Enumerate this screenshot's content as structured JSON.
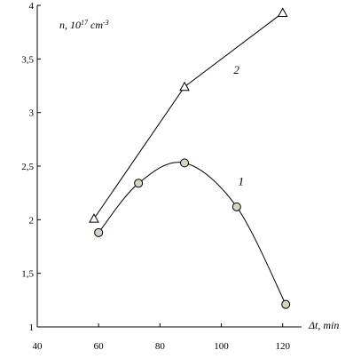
{
  "chart_data": {
    "type": "line",
    "ylabel_prefix": "n, 10",
    "ylabel_exp": "17",
    "ylabel_unit": " cm",
    "ylabel_unit_exp": "-3",
    "xlabel": "Δt, min",
    "xlim": [
      40,
      125
    ],
    "ylim": [
      1,
      4
    ],
    "xticks": [
      40,
      60,
      80,
      100,
      120
    ],
    "yticks": [
      1,
      1.5,
      2,
      2.5,
      3,
      3.5,
      4
    ],
    "xtick_labels": [
      "40",
      "60",
      "80",
      "100",
      "120"
    ],
    "ytick_labels": [
      "1",
      "1,5",
      "2",
      "2,5",
      "3",
      "3,5",
      "4"
    ],
    "series": [
      {
        "name": "1",
        "marker": "circle",
        "points": [
          [
            60,
            1.88
          ],
          [
            73,
            2.34
          ],
          [
            88,
            2.53
          ],
          [
            105,
            2.12
          ],
          [
            121,
            1.21
          ]
        ],
        "label_at": [
          105.5,
          2.32
        ]
      },
      {
        "name": "2",
        "marker": "triangle",
        "points": [
          [
            58.5,
            2.01
          ],
          [
            88,
            3.24
          ],
          [
            120,
            3.93
          ]
        ],
        "label_at": [
          104,
          3.36
        ]
      }
    ],
    "colors": {
      "marker_fill_circle": "#d4d4c4",
      "marker_fill_triangle": "#ffffff",
      "line": "#000000"
    }
  }
}
